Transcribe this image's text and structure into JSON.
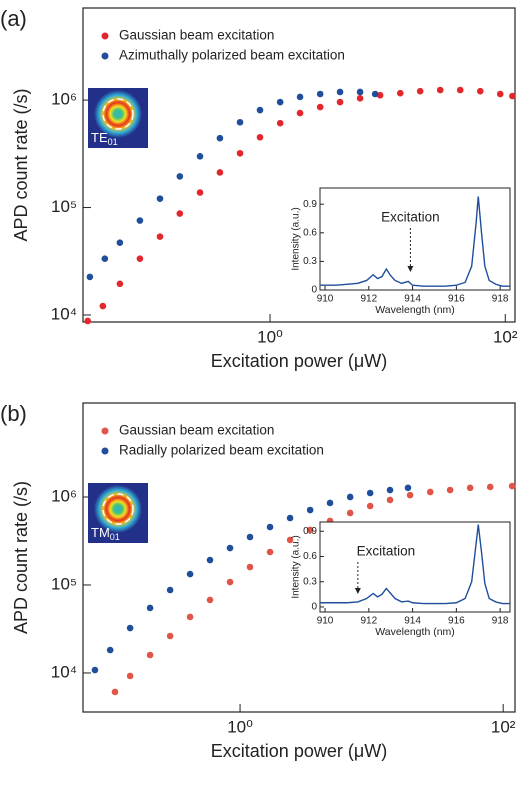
{
  "chart_data": [
    {
      "type": "scatter",
      "panel_label": "(a)",
      "xlabel": "Excitation power (μW)",
      "ylabel": "APD count rate (/s)",
      "xscale": "log",
      "yscale": "log",
      "xlim": [
        0.0257,
        121
      ],
      "ylim": [
        8600,
        7200000
      ],
      "xticks": [
        {
          "value": 1,
          "label": "10⁰"
        },
        {
          "value": 100,
          "label": "10²"
        }
      ],
      "yticks": [
        {
          "value": 10000,
          "label": "10⁴"
        },
        {
          "value": 100000,
          "label": "10⁵"
        },
        {
          "value": 1000000,
          "label": "10⁶"
        }
      ],
      "legend": "upper left",
      "inset_image_label": "TE",
      "inset_image_subscript": "01",
      "series": [
        {
          "name": "Gaussian beam excitation",
          "color": "#e3262b",
          "x": [
            0.0282,
            0.0379,
            0.0529,
            0.0783,
            0.116,
            0.171,
            0.254,
            0.375,
            0.556,
            0.822,
            1.22,
            1.8,
            2.67,
            3.94,
            5.83,
            8.63,
            12.8,
            18.9,
            28.0,
            41.4,
            61.3,
            90.6,
            115
          ],
          "values": [
            8790,
            12100,
            19500,
            33400,
            53600,
            87900,
            138000,
            212000,
            320000,
            451000,
            610000,
            757000,
            861000,
            958000,
            1040000,
            1110000,
            1160000,
            1210000,
            1240000,
            1240000,
            1210000,
            1140000,
            1090000
          ]
        },
        {
          "name": "Azimuthally polarized beam excitation",
          "color": "#1f4e9b",
          "x": [
            0.0294,
            0.0394,
            0.0529,
            0.0783,
            0.116,
            0.171,
            0.254,
            0.375,
            0.556,
            0.822,
            1.22,
            1.8,
            2.67,
            3.94,
            5.83,
            7.83
          ],
          "values": [
            22600,
            33400,
            47100,
            75700,
            121000,
            195000,
            300000,
            442000,
            622000,
            807000,
            958000,
            1070000,
            1140000,
            1190000,
            1190000,
            1140000
          ]
        }
      ]
    },
    {
      "type": "line",
      "xlabel": "Wavelength (nm)",
      "ylabel": "Intensity (a.u.)",
      "xlim": [
        909.77,
        918.45
      ],
      "ylim": [
        0,
        1.07
      ],
      "xticks": [
        910,
        912,
        914,
        916,
        918
      ],
      "yticks": [
        0,
        0.3,
        0.6,
        0.9
      ],
      "color": "#1f4e9b",
      "annotation": {
        "text": "Excitation",
        "x": 913.9
      },
      "x": [
        909.8,
        910.5,
        911,
        911.5,
        911.9,
        912.2,
        912.4,
        912.6,
        912.8,
        913.0,
        913.2,
        913.5,
        913.8,
        914.0,
        914.5,
        915,
        915.5,
        916,
        916.4,
        916.7,
        916.9,
        917.0,
        917.15,
        917.3,
        917.5,
        917.8,
        918.1,
        918.45
      ],
      "values": [
        0.05,
        0.05,
        0.06,
        0.07,
        0.1,
        0.16,
        0.12,
        0.14,
        0.22,
        0.15,
        0.1,
        0.07,
        0.09,
        0.05,
        0.04,
        0.04,
        0.04,
        0.05,
        0.08,
        0.25,
        0.7,
        0.98,
        0.6,
        0.25,
        0.1,
        0.06,
        0.04,
        0.04
      ]
    },
    {
      "type": "scatter",
      "panel_label": "(b)",
      "xlabel": "Excitation power (μW)",
      "ylabel": "APD count rate (/s)",
      "xscale": "log",
      "yscale": "log",
      "xlim": [
        0.064,
        123
      ],
      "ylim": [
        3600,
        11700000
      ],
      "xticks": [
        {
          "value": 1,
          "label": "10⁰"
        },
        {
          "value": 100,
          "label": "10²"
        }
      ],
      "yticks": [
        {
          "value": 10000,
          "label": "10⁴"
        },
        {
          "value": 100000,
          "label": "10⁵"
        },
        {
          "value": 1000000,
          "label": "10⁶"
        }
      ],
      "legend": "upper left",
      "inset_image_label": "TM",
      "inset_image_subscript": "01",
      "series": [
        {
          "name": "Gaussian beam excitation",
          "color": "#e05548",
          "x": [
            0.112,
            0.146,
            0.207,
            0.294,
            0.417,
            0.591,
            0.839,
            1.19,
            1.69,
            2.4,
            3.41,
            4.83,
            6.87,
            9.75,
            13.8,
            19.6,
            27.9,
            39.5,
            56.1,
            79.7,
            117
          ],
          "values": [
            6080,
            9250,
            16000,
            26300,
            43300,
            67600,
            108000,
            160000,
            237000,
            325000,
            422000,
            534000,
            658000,
            790000,
            925000,
            1050000,
            1140000,
            1200000,
            1270000,
            1300000,
            1330000
          ]
        },
        {
          "name": "Radially polarized beam excitation",
          "color": "#1f4e9b",
          "x": [
            0.0789,
            0.103,
            0.146,
            0.207,
            0.294,
            0.417,
            0.591,
            0.839,
            1.19,
            1.69,
            2.4,
            3.41,
            4.83,
            6.87,
            9.75,
            13.8,
            18.9
          ],
          "values": [
            10800,
            18200,
            32400,
            54800,
            87700,
            133000,
            192000,
            263000,
            351000,
            456000,
            577000,
            711000,
            855000,
            1000000,
            1110000,
            1200000,
            1270000
          ]
        }
      ]
    },
    {
      "type": "line",
      "xlabel": "Wavelength (nm)",
      "ylabel": "Intensity (a.u.)",
      "xlim": [
        909.77,
        918.45
      ],
      "ylim": [
        -0.06,
        1.01
      ],
      "xticks": [
        910,
        912,
        914,
        916,
        918
      ],
      "yticks": [
        0,
        0.3,
        0.6,
        0.9
      ],
      "color": "#1f4e9b",
      "annotation": {
        "text": "Excitation",
        "x": 911.5
      },
      "x": [
        909.8,
        910.5,
        911,
        911.5,
        911.9,
        912.2,
        912.4,
        912.6,
        912.8,
        913.0,
        913.2,
        913.5,
        913.8,
        914.0,
        914.5,
        915,
        915.5,
        916,
        916.4,
        916.7,
        916.9,
        917.0,
        917.15,
        917.3,
        917.5,
        917.8,
        918.1,
        918.45
      ],
      "values": [
        0.05,
        0.05,
        0.05,
        0.06,
        0.1,
        0.16,
        0.12,
        0.15,
        0.22,
        0.16,
        0.1,
        0.06,
        0.07,
        0.05,
        0.04,
        0.04,
        0.04,
        0.05,
        0.1,
        0.3,
        0.75,
        0.98,
        0.65,
        0.28,
        0.1,
        0.06,
        0.04,
        0.04
      ]
    }
  ]
}
